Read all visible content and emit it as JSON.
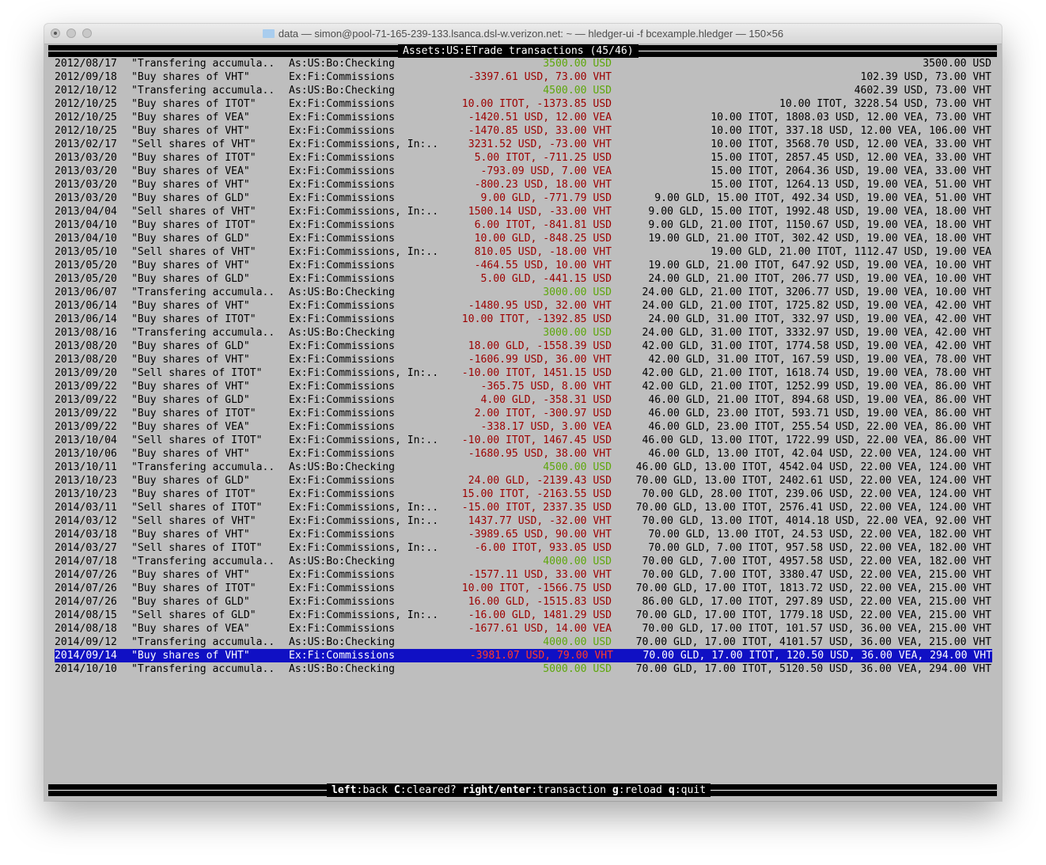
{
  "window": {
    "title": "data — simon@pool-71-165-239-133.lsanca.dsl-w.verizon.net: ~ — hledger-ui -f bcexample.hledger — 150×56"
  },
  "header": {
    "account": "Assets:US:ETrade",
    "suffix": "transactions (45/46)"
  },
  "footer": {
    "keys": [
      {
        "key": "left",
        "action": "back"
      },
      {
        "key": "C",
        "action": "cleared?"
      },
      {
        "key": "right/enter",
        "action": "transaction"
      },
      {
        "key": "g",
        "action": "reload"
      },
      {
        "key": "q",
        "action": "quit"
      }
    ]
  },
  "colors": {
    "background": "#bebebe",
    "negative": "#9c0000",
    "positive": "#5ea70c",
    "selection": "#1010c4"
  },
  "selected_index": 44,
  "rows": [
    {
      "date": "2012/08/17",
      "desc": "\"Transfering accumula..",
      "account": "As:US:Bo:Checking",
      "change": "3500.00 USD",
      "balance": "3500.00 USD"
    },
    {
      "date": "2012/09/18",
      "desc": "\"Buy shares of VHT\"",
      "account": "Ex:Fi:Commissions",
      "change": "-3397.61 USD, 73.00 VHT",
      "balance": "102.39 USD, 73.00 VHT"
    },
    {
      "date": "2012/10/12",
      "desc": "\"Transfering accumula..",
      "account": "As:US:Bo:Checking",
      "change": "4500.00 USD",
      "balance": "4602.39 USD, 73.00 VHT"
    },
    {
      "date": "2012/10/25",
      "desc": "\"Buy shares of ITOT\"",
      "account": "Ex:Fi:Commissions",
      "change": "10.00 ITOT, -1373.85 USD",
      "balance": "10.00 ITOT, 3228.54 USD, 73.00 VHT"
    },
    {
      "date": "2012/10/25",
      "desc": "\"Buy shares of VEA\"",
      "account": "Ex:Fi:Commissions",
      "change": "-1420.51 USD, 12.00 VEA",
      "balance": "10.00 ITOT, 1808.03 USD, 12.00 VEA, 73.00 VHT"
    },
    {
      "date": "2012/10/25",
      "desc": "\"Buy shares of VHT\"",
      "account": "Ex:Fi:Commissions",
      "change": "-1470.85 USD, 33.00 VHT",
      "balance": "10.00 ITOT, 337.18 USD, 12.00 VEA, 106.00 VHT"
    },
    {
      "date": "2013/02/17",
      "desc": "\"Sell shares of VHT\"",
      "account": "Ex:Fi:Commissions, In:..",
      "change": "3231.52 USD, -73.00 VHT",
      "balance": "10.00 ITOT, 3568.70 USD, 12.00 VEA, 33.00 VHT"
    },
    {
      "date": "2013/03/20",
      "desc": "\"Buy shares of ITOT\"",
      "account": "Ex:Fi:Commissions",
      "change": "5.00 ITOT, -711.25 USD",
      "balance": "15.00 ITOT, 2857.45 USD, 12.00 VEA, 33.00 VHT"
    },
    {
      "date": "2013/03/20",
      "desc": "\"Buy shares of VEA\"",
      "account": "Ex:Fi:Commissions",
      "change": "-793.09 USD, 7.00 VEA",
      "balance": "15.00 ITOT, 2064.36 USD, 19.00 VEA, 33.00 VHT"
    },
    {
      "date": "2013/03/20",
      "desc": "\"Buy shares of VHT\"",
      "account": "Ex:Fi:Commissions",
      "change": "-800.23 USD, 18.00 VHT",
      "balance": "15.00 ITOT, 1264.13 USD, 19.00 VEA, 51.00 VHT"
    },
    {
      "date": "2013/03/20",
      "desc": "\"Buy shares of GLD\"",
      "account": "Ex:Fi:Commissions",
      "change": "9.00 GLD, -771.79 USD",
      "balance": "9.00 GLD, 15.00 ITOT, 492.34 USD, 19.00 VEA, 51.00 VHT"
    },
    {
      "date": "2013/04/04",
      "desc": "\"Sell shares of VHT\"",
      "account": "Ex:Fi:Commissions, In:..",
      "change": "1500.14 USD, -33.00 VHT",
      "balance": "9.00 GLD, 15.00 ITOT, 1992.48 USD, 19.00 VEA, 18.00 VHT"
    },
    {
      "date": "2013/04/10",
      "desc": "\"Buy shares of ITOT\"",
      "account": "Ex:Fi:Commissions",
      "change": "6.00 ITOT, -841.81 USD",
      "balance": "9.00 GLD, 21.00 ITOT, 1150.67 USD, 19.00 VEA, 18.00 VHT"
    },
    {
      "date": "2013/04/10",
      "desc": "\"Buy shares of GLD\"",
      "account": "Ex:Fi:Commissions",
      "change": "10.00 GLD, -848.25 USD",
      "balance": "19.00 GLD, 21.00 ITOT, 302.42 USD, 19.00 VEA, 18.00 VHT"
    },
    {
      "date": "2013/05/10",
      "desc": "\"Sell shares of VHT\"",
      "account": "Ex:Fi:Commissions, In:..",
      "change": "810.05 USD, -18.00 VHT",
      "balance": "19.00 GLD, 21.00 ITOT, 1112.47 USD, 19.00 VEA"
    },
    {
      "date": "2013/05/20",
      "desc": "\"Buy shares of VHT\"",
      "account": "Ex:Fi:Commissions",
      "change": "-464.55 USD, 10.00 VHT",
      "balance": "19.00 GLD, 21.00 ITOT, 647.92 USD, 19.00 VEA, 10.00 VHT"
    },
    {
      "date": "2013/05/20",
      "desc": "\"Buy shares of GLD\"",
      "account": "Ex:Fi:Commissions",
      "change": "5.00 GLD, -441.15 USD",
      "balance": "24.00 GLD, 21.00 ITOT, 206.77 USD, 19.00 VEA, 10.00 VHT"
    },
    {
      "date": "2013/06/07",
      "desc": "\"Transfering accumula..",
      "account": "As:US:Bo:Checking",
      "change": "3000.00 USD",
      "balance": "24.00 GLD, 21.00 ITOT, 3206.77 USD, 19.00 VEA, 10.00 VHT"
    },
    {
      "date": "2013/06/14",
      "desc": "\"Buy shares of VHT\"",
      "account": "Ex:Fi:Commissions",
      "change": "-1480.95 USD, 32.00 VHT",
      "balance": "24.00 GLD, 21.00 ITOT, 1725.82 USD, 19.00 VEA, 42.00 VHT"
    },
    {
      "date": "2013/06/14",
      "desc": "\"Buy shares of ITOT\"",
      "account": "Ex:Fi:Commissions",
      "change": "10.00 ITOT, -1392.85 USD",
      "balance": "24.00 GLD, 31.00 ITOT, 332.97 USD, 19.00 VEA, 42.00 VHT"
    },
    {
      "date": "2013/08/16",
      "desc": "\"Transfering accumula..",
      "account": "As:US:Bo:Checking",
      "change": "3000.00 USD",
      "balance": "24.00 GLD, 31.00 ITOT, 3332.97 USD, 19.00 VEA, 42.00 VHT"
    },
    {
      "date": "2013/08/20",
      "desc": "\"Buy shares of GLD\"",
      "account": "Ex:Fi:Commissions",
      "change": "18.00 GLD, -1558.39 USD",
      "balance": "42.00 GLD, 31.00 ITOT, 1774.58 USD, 19.00 VEA, 42.00 VHT"
    },
    {
      "date": "2013/08/20",
      "desc": "\"Buy shares of VHT\"",
      "account": "Ex:Fi:Commissions",
      "change": "-1606.99 USD, 36.00 VHT",
      "balance": "42.00 GLD, 31.00 ITOT, 167.59 USD, 19.00 VEA, 78.00 VHT"
    },
    {
      "date": "2013/09/20",
      "desc": "\"Sell shares of ITOT\"",
      "account": "Ex:Fi:Commissions, In:..",
      "change": "-10.00 ITOT, 1451.15 USD",
      "balance": "42.00 GLD, 21.00 ITOT, 1618.74 USD, 19.00 VEA, 78.00 VHT"
    },
    {
      "date": "2013/09/22",
      "desc": "\"Buy shares of VHT\"",
      "account": "Ex:Fi:Commissions",
      "change": "-365.75 USD, 8.00 VHT",
      "balance": "42.00 GLD, 21.00 ITOT, 1252.99 USD, 19.00 VEA, 86.00 VHT"
    },
    {
      "date": "2013/09/22",
      "desc": "\"Buy shares of GLD\"",
      "account": "Ex:Fi:Commissions",
      "change": "4.00 GLD, -358.31 USD",
      "balance": "46.00 GLD, 21.00 ITOT, 894.68 USD, 19.00 VEA, 86.00 VHT"
    },
    {
      "date": "2013/09/22",
      "desc": "\"Buy shares of ITOT\"",
      "account": "Ex:Fi:Commissions",
      "change": "2.00 ITOT, -300.97 USD",
      "balance": "46.00 GLD, 23.00 ITOT, 593.71 USD, 19.00 VEA, 86.00 VHT"
    },
    {
      "date": "2013/09/22",
      "desc": "\"Buy shares of VEA\"",
      "account": "Ex:Fi:Commissions",
      "change": "-338.17 USD, 3.00 VEA",
      "balance": "46.00 GLD, 23.00 ITOT, 255.54 USD, 22.00 VEA, 86.00 VHT"
    },
    {
      "date": "2013/10/04",
      "desc": "\"Sell shares of ITOT\"",
      "account": "Ex:Fi:Commissions, In:..",
      "change": "-10.00 ITOT, 1467.45 USD",
      "balance": "46.00 GLD, 13.00 ITOT, 1722.99 USD, 22.00 VEA, 86.00 VHT"
    },
    {
      "date": "2013/10/06",
      "desc": "\"Buy shares of VHT\"",
      "account": "Ex:Fi:Commissions",
      "change": "-1680.95 USD, 38.00 VHT",
      "balance": "46.00 GLD, 13.00 ITOT, 42.04 USD, 22.00 VEA, 124.00 VHT"
    },
    {
      "date": "2013/10/11",
      "desc": "\"Transfering accumula..",
      "account": "As:US:Bo:Checking",
      "change": "4500.00 USD",
      "balance": "46.00 GLD, 13.00 ITOT, 4542.04 USD, 22.00 VEA, 124.00 VHT"
    },
    {
      "date": "2013/10/23",
      "desc": "\"Buy shares of GLD\"",
      "account": "Ex:Fi:Commissions",
      "change": "24.00 GLD, -2139.43 USD",
      "balance": "70.00 GLD, 13.00 ITOT, 2402.61 USD, 22.00 VEA, 124.00 VHT"
    },
    {
      "date": "2013/10/23",
      "desc": "\"Buy shares of ITOT\"",
      "account": "Ex:Fi:Commissions",
      "change": "15.00 ITOT, -2163.55 USD",
      "balance": "70.00 GLD, 28.00 ITOT, 239.06 USD, 22.00 VEA, 124.00 VHT"
    },
    {
      "date": "2014/03/11",
      "desc": "\"Sell shares of ITOT\"",
      "account": "Ex:Fi:Commissions, In:..",
      "change": "-15.00 ITOT, 2337.35 USD",
      "balance": "70.00 GLD, 13.00 ITOT, 2576.41 USD, 22.00 VEA, 124.00 VHT"
    },
    {
      "date": "2014/03/12",
      "desc": "\"Sell shares of VHT\"",
      "account": "Ex:Fi:Commissions, In:..",
      "change": "1437.77 USD, -32.00 VHT",
      "balance": "70.00 GLD, 13.00 ITOT, 4014.18 USD, 22.00 VEA, 92.00 VHT"
    },
    {
      "date": "2014/03/18",
      "desc": "\"Buy shares of VHT\"",
      "account": "Ex:Fi:Commissions",
      "change": "-3989.65 USD, 90.00 VHT",
      "balance": "70.00 GLD, 13.00 ITOT, 24.53 USD, 22.00 VEA, 182.00 VHT"
    },
    {
      "date": "2014/03/27",
      "desc": "\"Sell shares of ITOT\"",
      "account": "Ex:Fi:Commissions, In:..",
      "change": "-6.00 ITOT, 933.05 USD",
      "balance": "70.00 GLD, 7.00 ITOT, 957.58 USD, 22.00 VEA, 182.00 VHT"
    },
    {
      "date": "2014/07/18",
      "desc": "\"Transfering accumula..",
      "account": "As:US:Bo:Checking",
      "change": "4000.00 USD",
      "balance": "70.00 GLD, 7.00 ITOT, 4957.58 USD, 22.00 VEA, 182.00 VHT"
    },
    {
      "date": "2014/07/26",
      "desc": "\"Buy shares of VHT\"",
      "account": "Ex:Fi:Commissions",
      "change": "-1577.11 USD, 33.00 VHT",
      "balance": "70.00 GLD, 7.00 ITOT, 3380.47 USD, 22.00 VEA, 215.00 VHT"
    },
    {
      "date": "2014/07/26",
      "desc": "\"Buy shares of ITOT\"",
      "account": "Ex:Fi:Commissions",
      "change": "10.00 ITOT, -1566.75 USD",
      "balance": "70.00 GLD, 17.00 ITOT, 1813.72 USD, 22.00 VEA, 215.00 VHT"
    },
    {
      "date": "2014/07/26",
      "desc": "\"Buy shares of GLD\"",
      "account": "Ex:Fi:Commissions",
      "change": "16.00 GLD, -1515.83 USD",
      "balance": "86.00 GLD, 17.00 ITOT, 297.89 USD, 22.00 VEA, 215.00 VHT"
    },
    {
      "date": "2014/08/15",
      "desc": "\"Sell shares of GLD\"",
      "account": "Ex:Fi:Commissions, In:..",
      "change": "-16.00 GLD, 1481.29 USD",
      "balance": "70.00 GLD, 17.00 ITOT, 1779.18 USD, 22.00 VEA, 215.00 VHT"
    },
    {
      "date": "2014/08/18",
      "desc": "\"Buy shares of VEA\"",
      "account": "Ex:Fi:Commissions",
      "change": "-1677.61 USD, 14.00 VEA",
      "balance": "70.00 GLD, 17.00 ITOT, 101.57 USD, 36.00 VEA, 215.00 VHT"
    },
    {
      "date": "2014/09/12",
      "desc": "\"Transfering accumula..",
      "account": "As:US:Bo:Checking",
      "change": "4000.00 USD",
      "balance": "70.00 GLD, 17.00 ITOT, 4101.57 USD, 36.00 VEA, 215.00 VHT"
    },
    {
      "date": "2014/09/14",
      "desc": "\"Buy shares of VHT\"",
      "account": "Ex:Fi:Commissions",
      "change": "-3981.07 USD, 79.00 VHT",
      "balance": "70.00 GLD, 17.00 ITOT, 120.50 USD, 36.00 VEA, 294.00 VHT"
    },
    {
      "date": "2014/10/10",
      "desc": "\"Transfering accumula..",
      "account": "As:US:Bo:Checking",
      "change": "5000.00 USD",
      "balance": "70.00 GLD, 17.00 ITOT, 5120.50 USD, 36.00 VEA, 294.00 VHT"
    }
  ]
}
